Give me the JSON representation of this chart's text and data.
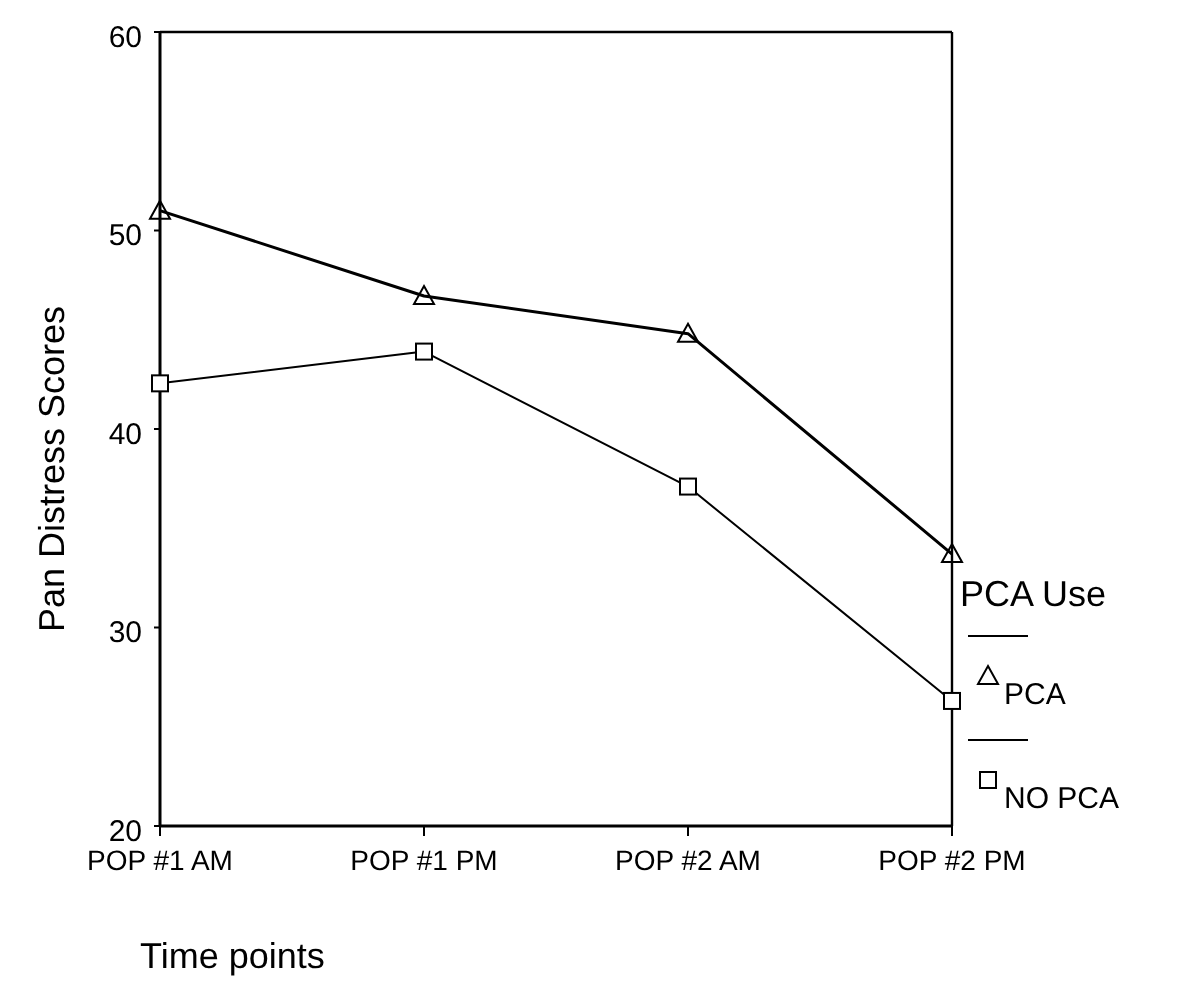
{
  "chart_data": {
    "type": "line",
    "xlabel": "Time points",
    "ylabel": "Pan Distress Scores",
    "legend_title": "PCA Use",
    "legend": "right",
    "line_style": "solid",
    "grid": false,
    "categories": [
      "POP #1 AM",
      "POP #1 PM",
      "POP #2 AM",
      "POP #2 PM"
    ],
    "ylim": [
      20,
      60
    ],
    "yticks": [
      20,
      30,
      40,
      50,
      60
    ],
    "series": [
      {
        "name": "PCA",
        "color": "#000000",
        "marker": "triangle",
        "values": [
          51.0,
          46.7,
          44.8,
          33.7
        ]
      },
      {
        "name": "NO PCA",
        "color": "#000000",
        "marker": "square",
        "values": [
          42.3,
          43.9,
          37.1,
          26.3
        ]
      }
    ]
  }
}
